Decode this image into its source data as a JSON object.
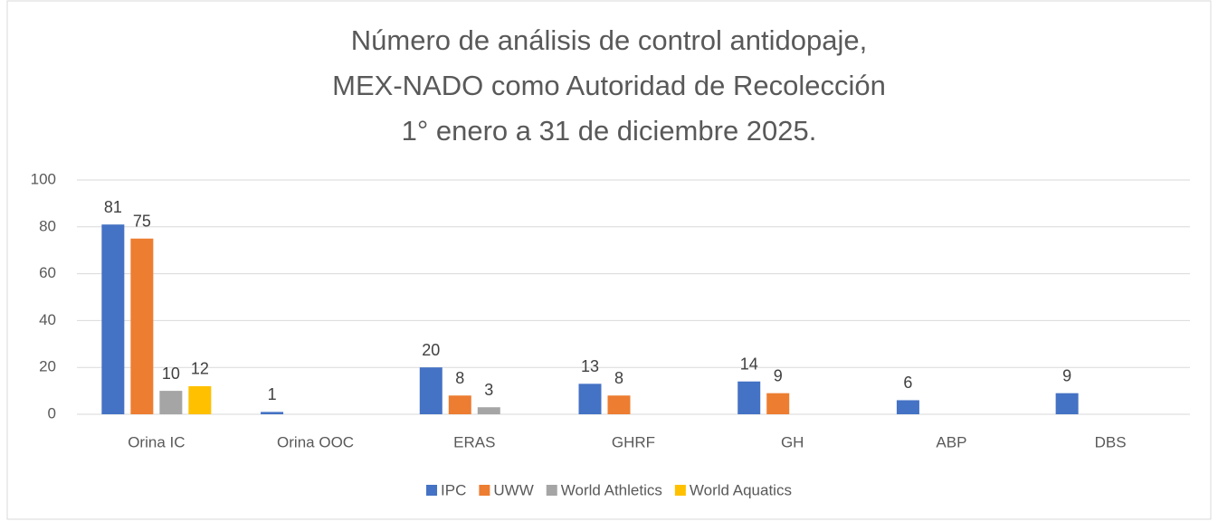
{
  "chart_data": {
    "type": "bar",
    "title": [
      "Número de análisis de control antidopaje,",
      "MEX-NADO como Autoridad de Recolección",
      "1° enero a 31 de diciembre 2025."
    ],
    "categories": [
      "Orina IC",
      "Orina OOC",
      "ERAS",
      "GHRF",
      "GH",
      "ABP",
      "DBS"
    ],
    "series": [
      {
        "name": "IPC",
        "color": "#4472c4",
        "values": [
          81,
          1,
          20,
          13,
          14,
          6,
          9
        ]
      },
      {
        "name": "UWW",
        "color": "#ed7d31",
        "values": [
          75,
          null,
          8,
          8,
          9,
          null,
          null
        ]
      },
      {
        "name": "World Athletics",
        "color": "#a5a5a5",
        "values": [
          10,
          null,
          3,
          null,
          null,
          null,
          null
        ]
      },
      {
        "name": "World Aquatics",
        "color": "#ffc000",
        "values": [
          12,
          null,
          null,
          null,
          null,
          null,
          null
        ]
      }
    ],
    "ylim": [
      0,
      100
    ],
    "yticks": [
      0,
      20,
      40,
      60,
      80,
      100
    ],
    "grid": true,
    "legend": "bottom"
  }
}
